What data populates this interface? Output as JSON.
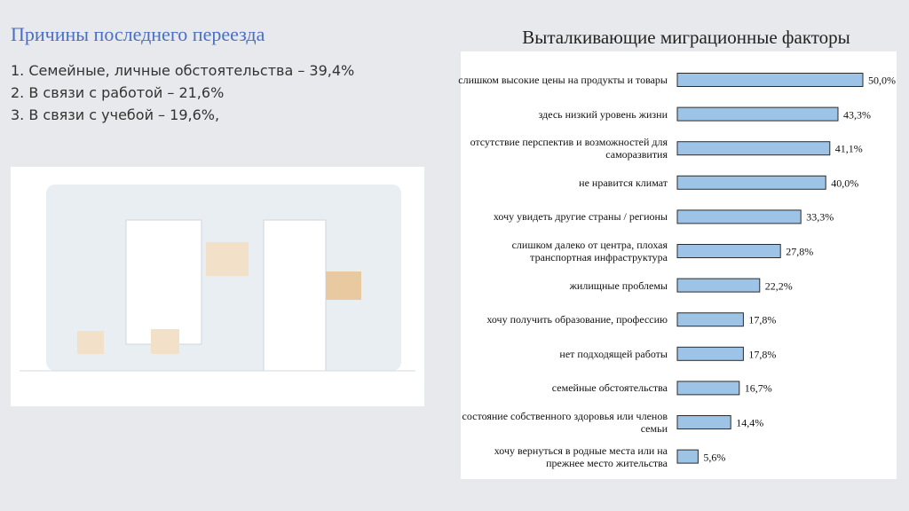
{
  "slide": {
    "title": "Причины последнего переезда",
    "items": [
      "1. Семейные, личные обстоятельства – 39,4%",
      "2. В связи с работой – 21,6%",
      "3. В связи с учебой – 19,6%,"
    ]
  },
  "chart_data": {
    "type": "bar",
    "orientation": "horizontal",
    "title": "Выталкивающие миграционные факторы",
    "categories": [
      "слишком высокие цены на продукты и товары",
      "здесь низкий уровень жизни",
      "отсутствие перспектив и возможностей для саморазвития",
      "не нравится климат",
      "хочу увидеть другие страны / регионы",
      "слишком далеко от центра, плохая транспортная инфраструктура",
      "жилищные проблемы",
      "хочу получить образование, профессию",
      "нет подходящей работы",
      "семейные обстоятельства",
      "состояние собственного здоровья или членов семьи",
      "хочу вернуться в родные места или на прежнее место жительства"
    ],
    "values": [
      50.0,
      43.3,
      41.1,
      40.0,
      33.3,
      27.8,
      22.2,
      17.8,
      17.8,
      16.7,
      14.4,
      5.6
    ],
    "value_labels": [
      "50,0%",
      "43,3%",
      "41,1%",
      "40,0%",
      "33,3%",
      "27,8%",
      "22,2%",
      "17,8%",
      "17,8%",
      "16,7%",
      "14,4%",
      "5,6%"
    ],
    "color": "#9dc3e6"
  }
}
